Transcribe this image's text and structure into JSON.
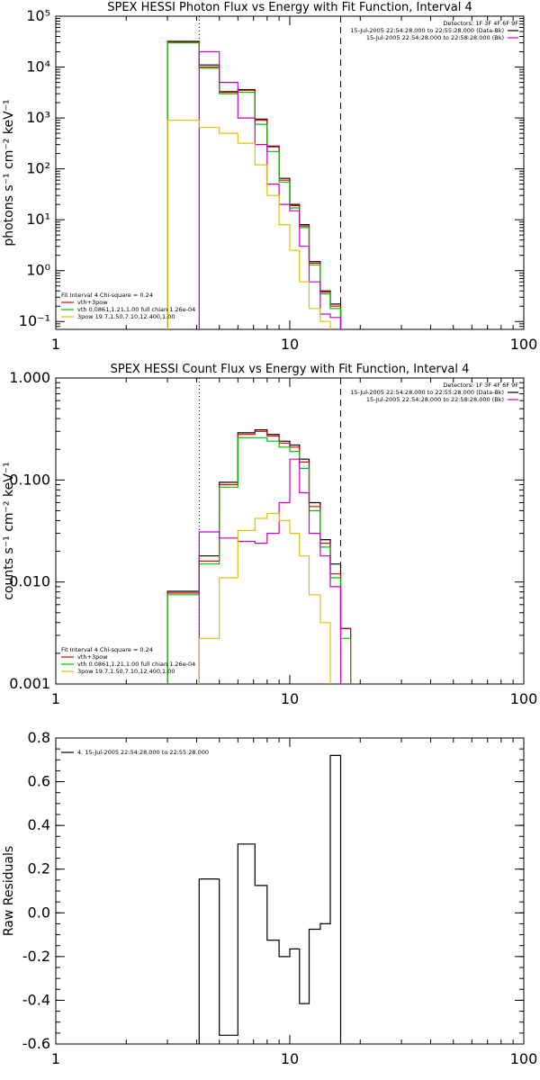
{
  "chart_data": [
    {
      "type": "line",
      "title": "SPEX HESSI Photon Flux vs Energy with Fit Function, Interval 4",
      "xlabel": "",
      "ylabel": "photons s⁻¹ cm⁻² keV⁻¹",
      "xscale": "log",
      "yscale": "log",
      "xlim": [
        1,
        100
      ],
      "ylim": [
        0.07,
        100000
      ],
      "x_ticks": [
        1,
        10,
        100
      ],
      "x_tick_labels": [
        "1",
        "10",
        "100"
      ],
      "y_ticks": [
        0.1,
        1,
        10,
        100,
        1000,
        10000,
        100000
      ],
      "y_tick_labels": [
        "10⁻¹",
        "10⁰",
        "10¹",
        "10²",
        "10³",
        "10⁴",
        "10⁵"
      ],
      "dotted_line_x": 4.1,
      "dashed_line_x": 16.5,
      "legend_left": {
        "header": "Fit Interval 4   Chi-square = 0.24",
        "entries": [
          {
            "label": "vth+3pow",
            "color": "#e00000"
          },
          {
            "label": "vth 0.0861,1.21,1.00  full chian 1.26e-04",
            "color": "#00c000"
          },
          {
            "label": "3pow 19.7,1.50,7.10,12.400,1.00",
            "color": "#e0c000"
          }
        ]
      },
      "legend_right": {
        "header": "Detectors: 1F 3F 4F 6F 9F",
        "entries": [
          {
            "label": "15-Jul-2005 22:54:28.000 to 22:55:28.000 (Data-Bk)",
            "color": "#000000"
          },
          {
            "label": "15-Jul-2005 22:54:28.000 to 22:58:28.000 (Bk)",
            "color": "#cc00cc"
          }
        ]
      },
      "series": [
        {
          "color": "#000000",
          "edges": [
            3.0,
            4.1,
            5.0,
            6.0,
            7.1,
            8.0,
            9.0,
            10.0,
            11.0,
            12.1,
            13.5,
            14.9,
            16.5
          ],
          "values": [
            32000,
            11000,
            3300,
            3600,
            950,
            280,
            65,
            20,
            8,
            1.5,
            0.4,
            0.22
          ]
        },
        {
          "color": "#e00000",
          "edges": [
            3.0,
            4.1,
            5.0,
            6.0,
            7.1,
            8.0,
            9.0,
            10.0,
            11.0,
            12.1,
            13.5,
            14.9,
            16.5
          ],
          "values": [
            31000,
            10000,
            3200,
            3500,
            900,
            270,
            60,
            19,
            7.5,
            1.4,
            0.38,
            0.2
          ]
        },
        {
          "color": "#00c000",
          "edges": [
            3.0,
            4.1,
            5.0,
            6.0,
            7.1,
            8.0,
            9.0,
            10.0,
            11.0,
            12.1,
            13.5,
            14.9,
            16.5
          ],
          "values": [
            30000,
            9500,
            3000,
            3200,
            750,
            220,
            55,
            17,
            7,
            1.3,
            0.35,
            0.18
          ]
        },
        {
          "color": "#cc00cc",
          "edges": [
            4.1,
            5.0,
            6.0,
            7.1,
            8.0,
            9.0,
            10.0,
            11.0,
            12.1,
            13.5,
            14.9,
            16.5
          ],
          "values": [
            20000,
            5000,
            1000,
            300,
            50,
            20,
            15,
            3,
            0.6,
            0.14,
            0.12
          ]
        },
        {
          "color": "#e0c000",
          "edges": [
            3.0,
            4.1,
            5.0,
            6.0,
            7.1,
            8.0,
            9.0,
            10.0,
            11.0,
            12.1,
            13.5,
            14.9
          ],
          "values": [
            900,
            650,
            500,
            320,
            120,
            30,
            8,
            2.5,
            0.6,
            0.18,
            0.1
          ]
        }
      ]
    },
    {
      "type": "line",
      "title": "SPEX HESSI Count Flux vs Energy with Fit Function, Interval 4",
      "xlabel": "",
      "ylabel": "counts s⁻¹ cm⁻² keV⁻¹",
      "xscale": "log",
      "yscale": "log",
      "xlim": [
        1,
        100
      ],
      "ylim": [
        0.001,
        1
      ],
      "x_ticks": [
        1,
        10,
        100
      ],
      "x_tick_labels": [
        "1",
        "10",
        "100"
      ],
      "y_ticks": [
        0.001,
        0.01,
        0.1,
        1
      ],
      "y_tick_labels": [
        "0.001",
        "0.010",
        "0.100",
        "1.000"
      ],
      "dotted_line_x": 4.1,
      "dashed_line_x": 16.5,
      "legend_left": {
        "header": "Fit Interval 4   Chi-square = 0.24",
        "entries": [
          {
            "label": "vth+3pow",
            "color": "#e00000"
          },
          {
            "label": "vth 0.0861,1.21,1.00  full chian 1.26e-04",
            "color": "#00c000"
          },
          {
            "label": "3pow 19.7,1.50,7.10,12.400,1.00",
            "color": "#e0c000"
          }
        ]
      },
      "legend_right": {
        "header": "Detectors: 1F 3F 4F 6F 9F",
        "entries": [
          {
            "label": "15-Jul-2005 22:54:28.000 to 22:55:28.000 (Data-Bk)",
            "color": "#000000"
          },
          {
            "label": "15-Jul-2005 22:54:28.000 to 22:58:28.000 (Bk)",
            "color": "#cc00cc"
          }
        ]
      },
      "series": [
        {
          "color": "#000000",
          "edges": [
            3.0,
            4.1,
            5.0,
            6.0,
            7.1,
            8.0,
            9.0,
            10.0,
            11.0,
            12.1,
            13.5,
            14.9,
            16.5,
            18.2
          ],
          "values": [
            0.0081,
            0.018,
            0.095,
            0.29,
            0.31,
            0.28,
            0.24,
            0.22,
            0.16,
            0.06,
            0.026,
            0.015,
            0.0035
          ]
        },
        {
          "color": "#e00000",
          "edges": [
            3.0,
            4.1,
            5.0,
            6.0,
            7.1,
            8.0,
            9.0,
            10.0,
            11.0,
            12.1,
            13.5,
            14.9,
            16.5,
            18.2
          ],
          "values": [
            0.0078,
            0.016,
            0.09,
            0.28,
            0.3,
            0.27,
            0.23,
            0.21,
            0.15,
            0.055,
            0.024,
            0.012,
            0.0035
          ]
        },
        {
          "color": "#00c000",
          "edges": [
            3.0,
            4.1,
            5.0,
            6.0,
            7.1,
            8.0,
            9.0,
            10.0,
            11.0,
            12.1,
            13.5,
            14.9,
            16.5,
            18.2
          ],
          "values": [
            0.0075,
            0.015,
            0.085,
            0.26,
            0.26,
            0.24,
            0.21,
            0.19,
            0.13,
            0.05,
            0.022,
            0.011,
            0.0028
          ]
        },
        {
          "color": "#cc00cc",
          "edges": [
            4.1,
            5.0,
            6.0,
            7.1,
            8.0,
            9.0,
            10.0,
            11.0,
            12.1,
            13.5,
            14.9,
            16.5
          ],
          "values": [
            0.031,
            0.027,
            0.025,
            0.024,
            0.03,
            0.06,
            0.16,
            0.075,
            0.03,
            0.018,
            0.009
          ]
        },
        {
          "color": "#e0c000",
          "edges": [
            4.1,
            5.0,
            6.0,
            7.1,
            8.0,
            9.0,
            10.0,
            11.0,
            12.1,
            13.5,
            14.9
          ],
          "values": [
            0.0028,
            0.011,
            0.032,
            0.042,
            0.047,
            0.04,
            0.03,
            0.018,
            0.0075,
            0.004
          ]
        }
      ]
    },
    {
      "type": "line",
      "title": "",
      "xlabel": "",
      "ylabel": "Raw Residuals",
      "xscale": "log",
      "yscale": "linear",
      "xlim": [
        1,
        100
      ],
      "ylim": [
        -0.6,
        0.8
      ],
      "x_ticks": [
        1,
        10,
        100
      ],
      "x_tick_labels": [
        "1",
        "10",
        "100"
      ],
      "y_ticks": [
        -0.6,
        -0.4,
        -0.2,
        0.0,
        0.2,
        0.4,
        0.6,
        0.8
      ],
      "y_tick_labels": [
        "-0.6",
        "-0.4",
        "-0.2",
        "0.0",
        "0.2",
        "0.4",
        "0.6",
        "0.8"
      ],
      "legend_left": {
        "header": "",
        "entries": [
          {
            "label": "4. 15-Jul-2005 22:54:28.000 to 22:55:28.000",
            "color": "#000000"
          }
        ]
      },
      "series": [
        {
          "color": "#000000",
          "edges": [
            4.1,
            5.0,
            6.0,
            7.1,
            8.0,
            9.0,
            10.0,
            11.0,
            12.1,
            13.5,
            14.9,
            16.5
          ],
          "values": [
            0.155,
            -0.56,
            0.315,
            0.125,
            -0.125,
            -0.2,
            -0.165,
            -0.415,
            -0.075,
            -0.05,
            0.72
          ]
        }
      ]
    }
  ]
}
